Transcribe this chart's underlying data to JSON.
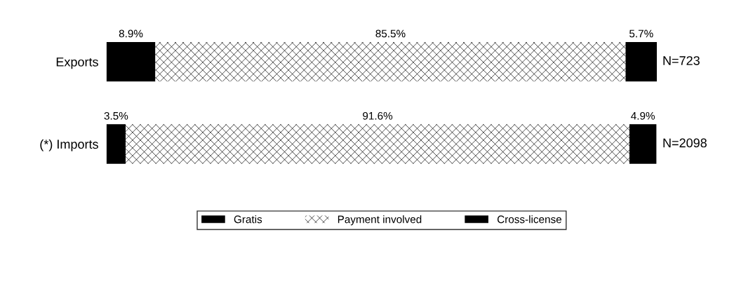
{
  "chart_data": {
    "type": "bar",
    "orientation": "horizontal",
    "stacked": true,
    "categories": [
      "Exports",
      "(*) Imports"
    ],
    "series": [
      {
        "name": "Gratis",
        "color": "#000000",
        "values": [
          8.9,
          3.5
        ],
        "value_labels": [
          "8.9%",
          "3.5%"
        ]
      },
      {
        "name": "Payment involved",
        "color": "#ffffff",
        "values": [
          85.5,
          91.6
        ],
        "value_labels": [
          "85.5%",
          "91.6%"
        ]
      },
      {
        "name": "Cross-license",
        "color": "#000000",
        "values": [
          5.7,
          4.9
        ],
        "value_labels": [
          "5.7%",
          "4.9%"
        ]
      }
    ],
    "annotations": [
      "N=723",
      "N=2098"
    ],
    "legend": "bottom",
    "grid": false,
    "tick_labels": "y"
  }
}
